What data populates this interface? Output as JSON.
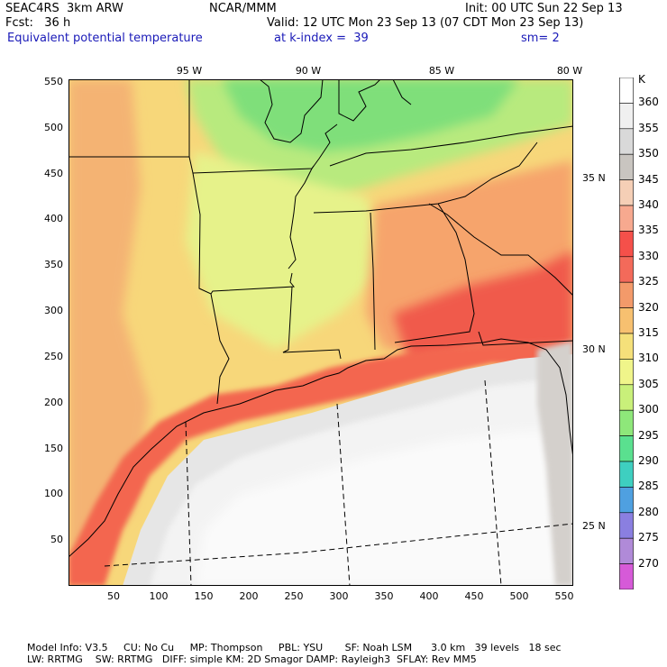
{
  "header": {
    "line1_left": "SEAC4RS  3km ARW",
    "line1_mid": "NCAR/MMM",
    "line1_right": "Init: 00 UTC Sun 22 Sep 13",
    "line2_left": "Fcst:   36 h",
    "line2_right": "Valid: 12 UTC Mon 23 Sep 13 (07 CDT Mon 23 Sep 13)",
    "line3_left": "Equivalent potential temperature",
    "line3_mid": "at k-index =  39",
    "line3_right": "sm= 2"
  },
  "map": {
    "x_ticks": [
      "50",
      "100",
      "150",
      "200",
      "250",
      "300",
      "350",
      "400",
      "450",
      "500",
      "550"
    ],
    "y_ticks": [
      "550",
      "500",
      "450",
      "400",
      "350",
      "300",
      "250",
      "200",
      "150",
      "100",
      "50"
    ],
    "lon_labels": [
      "95 W",
      "90 W",
      "85 W",
      "80 W"
    ],
    "lat_labels": [
      "35 N",
      "30 N",
      "25 N"
    ],
    "field": "Equivalent potential temperature",
    "domain_extent_gridpoints": [
      0,
      560
    ]
  },
  "colorbar": {
    "unit": "K",
    "levels": [
      "360",
      "355",
      "350",
      "345",
      "340",
      "335",
      "330",
      "325",
      "320",
      "315",
      "310",
      "305",
      "300",
      "295",
      "290",
      "285",
      "280",
      "275",
      "270"
    ],
    "colors": [
      "#ffffff",
      "#f0f0f0",
      "#d9d9d9",
      "#c9c5c0",
      "#f5cfb6",
      "#f7a98f",
      "#f5504a",
      "#f36a5a",
      "#f39a6a",
      "#f7c070",
      "#f5e07a",
      "#f0f58a",
      "#c9f07a",
      "#8ee77a",
      "#5ae08f",
      "#3ecfc0",
      "#4fa0e0",
      "#8a7fe0",
      "#b08ad8",
      "#d65ad8"
    ]
  },
  "footer": {
    "line1": "Model Info: V3.5     CU: No Cu     MP: Thompson     PBL: YSU       SF: Noah LSM      3.0 km   39 levels   18 sec",
    "line2": "LW: RRTMG    SW: RRTMG   DIFF: simple KM: 2D Smagor DAMP: Rayleigh3  SFLAY: Rev MM5"
  }
}
